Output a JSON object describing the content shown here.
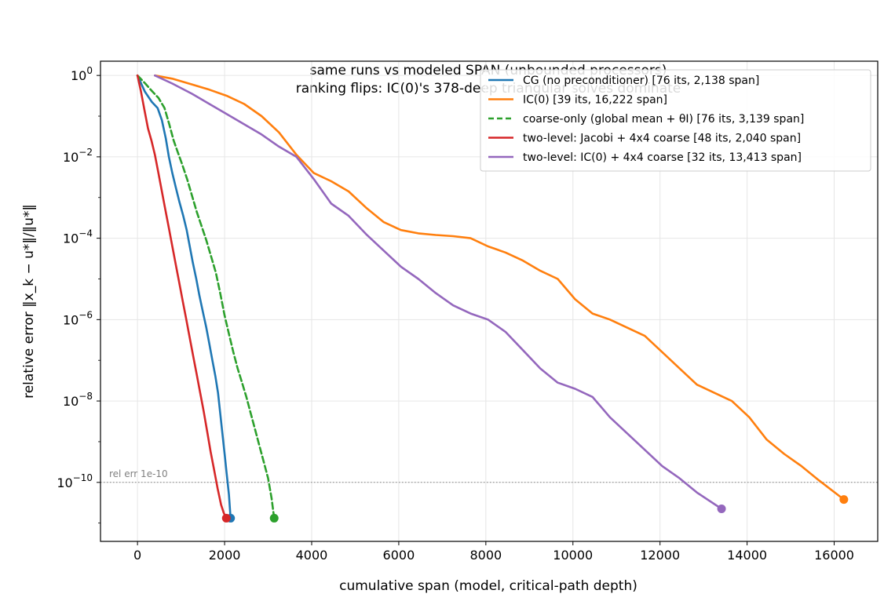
{
  "chart_data": {
    "type": "line",
    "title": "same runs vs modeled SPAN (unbounded processors)",
    "subtitle": "ranking flips: IC(0)'s 378-deep triangular solves dominate",
    "xlabel": "cumulative span (model, critical-path depth)",
    "ylabel": "relative error ‖x_k − u*‖/‖u*‖",
    "xlim": [
      -850,
      17000
    ],
    "ylim_log10": [
      -11.45,
      0.35
    ],
    "y_scale": "log",
    "grid": true,
    "legend_position": "top-right",
    "x_ticks": [
      0,
      2000,
      4000,
      6000,
      8000,
      10000,
      12000,
      14000,
      16000
    ],
    "y_ticks_exponents": [
      0,
      -2,
      -4,
      -6,
      -8,
      -10
    ],
    "reference_line": {
      "y_log10": -10,
      "label": "rel err 1e-10",
      "color": "#808080"
    },
    "series": [
      {
        "name": "CG (no preconditioner)  [76 its, 2,138 span]",
        "color": "#1f77b4",
        "dash": "solid",
        "x": [
          0,
          170,
          330,
          460,
          560,
          650,
          720,
          800,
          880,
          960,
          1050,
          1130,
          1200,
          1270,
          1350,
          1420,
          1500,
          1580,
          1650,
          1720,
          1790,
          1850,
          1900,
          1950,
          2000,
          2050,
          2100,
          2138
        ],
        "y_log10": [
          0,
          -0.4,
          -0.65,
          -0.8,
          -1.1,
          -1.55,
          -2.0,
          -2.4,
          -2.75,
          -3.1,
          -3.45,
          -3.8,
          -4.2,
          -4.6,
          -5.0,
          -5.4,
          -5.8,
          -6.2,
          -6.6,
          -7.0,
          -7.4,
          -7.8,
          -8.3,
          -8.8,
          -9.3,
          -9.8,
          -10.3,
          -10.88
        ]
      },
      {
        "name": "IC(0)  [39 its, 16,222 span]",
        "color": "#ff7f0e",
        "dash": "solid",
        "x": [
          400,
          800,
          1250,
          1650,
          2050,
          2450,
          2850,
          3250,
          3650,
          4050,
          4450,
          4850,
          5250,
          5650,
          6050,
          6450,
          6850,
          7250,
          7650,
          8050,
          8450,
          8850,
          9250,
          9650,
          10050,
          10450,
          10850,
          11250,
          11650,
          12050,
          12450,
          12850,
          13250,
          13650,
          14050,
          14450,
          14850,
          15250,
          15650,
          16222
        ],
        "y_log10": [
          0,
          -0.08,
          -0.22,
          -0.35,
          -0.5,
          -0.7,
          -1.0,
          -1.4,
          -1.95,
          -2.4,
          -2.6,
          -2.85,
          -3.25,
          -3.6,
          -3.8,
          -3.88,
          -3.92,
          -3.95,
          -4.0,
          -4.2,
          -4.35,
          -4.55,
          -4.8,
          -5.0,
          -5.5,
          -5.85,
          -6.0,
          -6.2,
          -6.4,
          -6.8,
          -7.2,
          -7.6,
          -7.8,
          -8.0,
          -8.4,
          -8.95,
          -9.3,
          -9.6,
          -9.95,
          -10.42
        ]
      },
      {
        "name": "coarse-only (global mean + θI)  [76 its, 3,139 span]",
        "color": "#2ca02c",
        "dash": "dashed",
        "x": [
          0,
          180,
          330,
          480,
          620,
          730,
          830,
          930,
          1030,
          1140,
          1250,
          1360,
          1470,
          1580,
          1690,
          1800,
          1900,
          2000,
          2100,
          2200,
          2300,
          2400,
          2500,
          2600,
          2700,
          2800,
          2900,
          3000,
          3080,
          3139
        ],
        "y_log10": [
          0,
          -0.2,
          -0.38,
          -0.55,
          -0.8,
          -1.2,
          -1.6,
          -1.9,
          -2.2,
          -2.55,
          -2.95,
          -3.35,
          -3.7,
          -4.05,
          -4.45,
          -4.85,
          -5.35,
          -5.9,
          -6.35,
          -6.8,
          -7.2,
          -7.55,
          -7.9,
          -8.3,
          -8.7,
          -9.1,
          -9.5,
          -9.9,
          -10.4,
          -10.88
        ]
      },
      {
        "name": "two-level: Jacobi + 4x4 coarse  [48 its, 2,040 span]",
        "color": "#d62728",
        "dash": "solid",
        "x": [
          0,
          80,
          160,
          240,
          320,
          400,
          480,
          560,
          640,
          720,
          800,
          880,
          960,
          1040,
          1120,
          1200,
          1280,
          1360,
          1440,
          1520,
          1600,
          1680,
          1760,
          1840,
          1920,
          1980,
          2040
        ],
        "y_log10": [
          0,
          -0.4,
          -0.85,
          -1.3,
          -1.6,
          -1.95,
          -2.4,
          -2.85,
          -3.3,
          -3.75,
          -4.2,
          -4.65,
          -5.1,
          -5.55,
          -6.0,
          -6.45,
          -6.9,
          -7.35,
          -7.8,
          -8.25,
          -8.75,
          -9.25,
          -9.7,
          -10.15,
          -10.55,
          -10.75,
          -10.88
        ]
      },
      {
        "name": "two-level: IC(0) + 4x4 coarse  [32 its, 13,413 span]",
        "color": "#9467bd",
        "dash": "solid",
        "x": [
          400,
          800,
          1250,
          1650,
          2050,
          2450,
          2850,
          3250,
          3650,
          4050,
          4450,
          4850,
          5250,
          5650,
          6050,
          6450,
          6850,
          7250,
          7650,
          8050,
          8450,
          8850,
          9250,
          9650,
          10050,
          10450,
          10850,
          11250,
          11650,
          12050,
          12450,
          12850,
          13413
        ],
        "y_log10": [
          0,
          -0.2,
          -0.45,
          -0.7,
          -0.95,
          -1.2,
          -1.45,
          -1.75,
          -2.0,
          -2.55,
          -3.15,
          -3.45,
          -3.9,
          -4.3,
          -4.7,
          -5.0,
          -5.35,
          -5.65,
          -5.85,
          -6.0,
          -6.3,
          -6.75,
          -7.2,
          -7.55,
          -7.7,
          -7.9,
          -8.4,
          -8.8,
          -9.2,
          -9.6,
          -9.9,
          -10.25,
          -10.65
        ]
      }
    ]
  }
}
